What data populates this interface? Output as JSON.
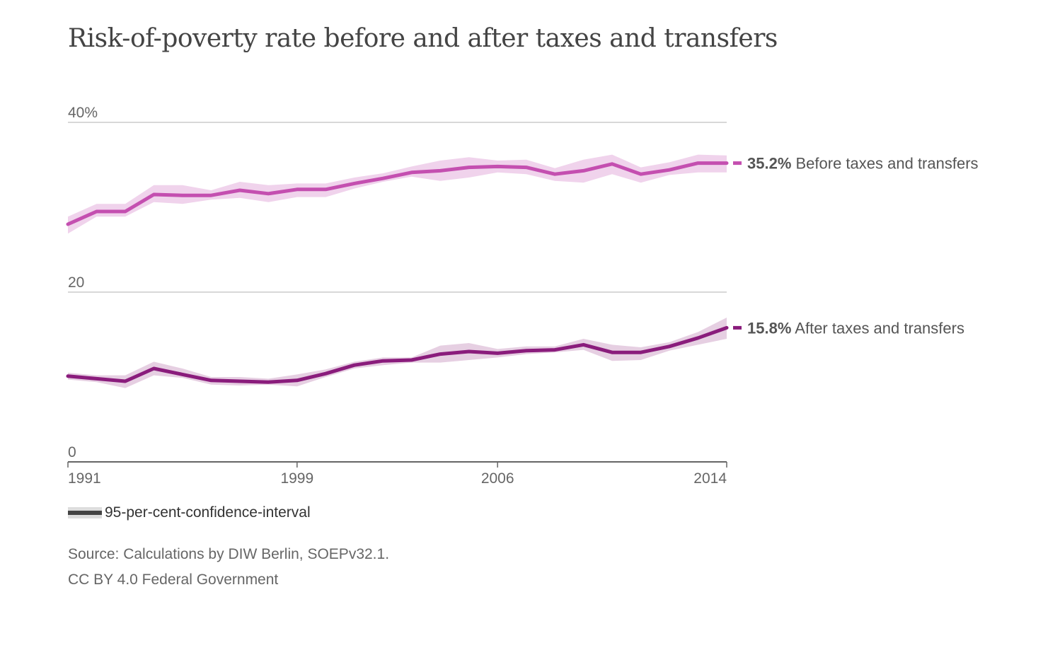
{
  "title": "Risk-of-poverty rate before and after taxes and transfers",
  "legend": {
    "label": "95-per-cent-confidence-interval"
  },
  "source": "Source: Calculations by DIW Berlin, SOEPv32.1.",
  "license": "CC BY 4.0 Federal Government",
  "chart_data": {
    "type": "line",
    "title": "Risk-of-poverty rate before and after taxes and transfers",
    "xlabel": "",
    "ylabel": "",
    "ylim": [
      0,
      40
    ],
    "xlim": [
      1991,
      2014
    ],
    "y_ticks": [
      {
        "value": 40,
        "label": "40%"
      },
      {
        "value": 20,
        "label": "20"
      },
      {
        "value": 0,
        "label": "0"
      }
    ],
    "x_ticks": [
      {
        "value": 1991,
        "label": "1991"
      },
      {
        "value": 1999,
        "label": "1999"
      },
      {
        "value": 2006,
        "label": "2006"
      },
      {
        "value": 2014,
        "label": "2014"
      }
    ],
    "grid": true,
    "x": [
      1991,
      1992,
      1993,
      1994,
      1995,
      1996,
      1997,
      1998,
      1999,
      2000,
      2001,
      2002,
      2003,
      2004,
      2005,
      2006,
      2007,
      2008,
      2009,
      2010,
      2011,
      2012,
      2013,
      2014
    ],
    "series": [
      {
        "name": "Before taxes and transfers",
        "end_label_value": "35.2%",
        "end_label_text": "Before taxes and transfers",
        "color": "#c44fb0",
        "band_color": "#f0d3ec",
        "values": [
          28.0,
          29.5,
          29.5,
          31.5,
          31.4,
          31.4,
          32.0,
          31.6,
          32.1,
          32.1,
          32.8,
          33.4,
          34.1,
          34.3,
          34.7,
          34.8,
          34.7,
          33.9,
          34.3,
          35.1,
          33.9,
          34.4,
          35.2,
          35.2
        ],
        "ci_lower": [
          26.9,
          28.9,
          28.9,
          30.6,
          30.4,
          30.9,
          31.1,
          30.6,
          31.2,
          31.2,
          32.2,
          33.0,
          33.6,
          33.1,
          33.5,
          34.1,
          33.9,
          33.1,
          32.9,
          33.9,
          32.9,
          33.8,
          34.1,
          34.1
        ],
        "ci_upper": [
          28.9,
          30.4,
          30.4,
          32.6,
          32.6,
          32.0,
          33.0,
          32.6,
          32.8,
          32.8,
          33.5,
          34.0,
          34.8,
          35.5,
          35.9,
          35.5,
          35.6,
          34.6,
          35.6,
          36.2,
          34.7,
          35.3,
          36.2,
          36.1
        ]
      },
      {
        "name": "After taxes and transfers",
        "end_label_value": "15.8%",
        "end_label_text": "After taxes and transfers",
        "color": "#8a1c7c",
        "band_color": "#e6cfe2",
        "values": [
          10.1,
          9.8,
          9.5,
          11.0,
          10.3,
          9.6,
          9.5,
          9.4,
          9.6,
          10.4,
          11.4,
          11.9,
          12.0,
          12.7,
          13.0,
          12.8,
          13.1,
          13.2,
          13.8,
          12.9,
          12.9,
          13.6,
          14.6,
          15.8
        ],
        "ci_lower": [
          9.7,
          9.4,
          8.7,
          10.2,
          9.9,
          9.1,
          9.0,
          9.1,
          8.9,
          10.0,
          11.0,
          11.4,
          11.7,
          11.7,
          12.0,
          12.3,
          12.7,
          12.9,
          13.2,
          11.9,
          12.0,
          13.1,
          13.8,
          14.5
        ],
        "ci_upper": [
          10.5,
          10.2,
          10.2,
          11.8,
          11.0,
          10.0,
          10.0,
          9.8,
          10.3,
          10.9,
          11.8,
          12.3,
          12.3,
          13.7,
          14.0,
          13.3,
          13.6,
          13.6,
          14.5,
          13.8,
          13.5,
          14.1,
          15.3,
          17.0
        ]
      }
    ]
  }
}
